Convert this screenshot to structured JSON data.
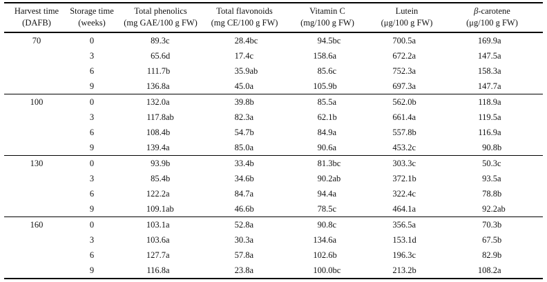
{
  "table": {
    "columns": [
      {
        "label": "Harvest time",
        "unit": "(DAFB)"
      },
      {
        "label": "Storage time",
        "unit": "(weeks)"
      },
      {
        "label": "Total phenolics",
        "unit": "(mg GAE/100 g FW)"
      },
      {
        "label": "Total flavonoids",
        "unit": "(mg CE/100 g FW)"
      },
      {
        "label": "Vitamin C",
        "unit": "(mg/100 g FW)"
      },
      {
        "label": "Lutein",
        "unit": "(μg/100 g FW)"
      },
      {
        "label": "β-carotene",
        "unit": "(μg/100 g FW)"
      }
    ],
    "groups": [
      {
        "harvest_time": "70",
        "rows": [
          {
            "storage": "0",
            "phenolics": "89.3c",
            "flavonoids": "28.4bc",
            "vitamin_c": "94.5bc",
            "lutein": "700.5a",
            "beta_carotene": "169.9a"
          },
          {
            "storage": "3",
            "phenolics": "65.6d",
            "flavonoids": "17.4c",
            "vitamin_c": "158.6a",
            "lutein": "672.2a",
            "beta_carotene": "147.5a"
          },
          {
            "storage": "6",
            "phenolics": "111.7b",
            "flavonoids": "35.9ab",
            "vitamin_c": "85.6c",
            "lutein": "752.3a",
            "beta_carotene": "158.3a"
          },
          {
            "storage": "9",
            "phenolics": "136.8a",
            "flavonoids": "45.0a",
            "vitamin_c": "105.9b",
            "lutein": "697.3a",
            "beta_carotene": "147.7a"
          }
        ]
      },
      {
        "harvest_time": "100",
        "rows": [
          {
            "storage": "0",
            "phenolics": "132.0a",
            "flavonoids": "39.8b",
            "vitamin_c": "85.5a",
            "lutein": "562.0b",
            "beta_carotene": "118.9a"
          },
          {
            "storage": "3",
            "phenolics": "117.8ab",
            "flavonoids": "82.3a",
            "vitamin_c": "62.1b",
            "lutein": "661.4a",
            "beta_carotene": "119.5a"
          },
          {
            "storage": "6",
            "phenolics": "108.4b",
            "flavonoids": "54.7b",
            "vitamin_c": "84.9a",
            "lutein": "557.8b",
            "beta_carotene": "116.9a"
          },
          {
            "storage": "9",
            "phenolics": "139.4a",
            "flavonoids": "85.0a",
            "vitamin_c": "90.6a",
            "lutein": "453.2c",
            "beta_carotene": "90.8b"
          }
        ]
      },
      {
        "harvest_time": "130",
        "rows": [
          {
            "storage": "0",
            "phenolics": "93.9b",
            "flavonoids": "33.4b",
            "vitamin_c": "81.3bc",
            "lutein": "303.3c",
            "beta_carotene": "50.3c"
          },
          {
            "storage": "3",
            "phenolics": "85.4b",
            "flavonoids": "34.6b",
            "vitamin_c": "90.2ab",
            "lutein": "372.1b",
            "beta_carotene": "93.5a"
          },
          {
            "storage": "6",
            "phenolics": "122.2a",
            "flavonoids": "84.7a",
            "vitamin_c": "94.4a",
            "lutein": "322.4c",
            "beta_carotene": "78.8b"
          },
          {
            "storage": "9",
            "phenolics": "109.1ab",
            "flavonoids": "46.6b",
            "vitamin_c": "78.5c",
            "lutein": "464.1a",
            "beta_carotene": "92.2ab"
          }
        ]
      },
      {
        "harvest_time": "160",
        "rows": [
          {
            "storage": "0",
            "phenolics": "103.1a",
            "flavonoids": "52.8a",
            "vitamin_c": "90.8c",
            "lutein": "356.5a",
            "beta_carotene": "70.3b"
          },
          {
            "storage": "3",
            "phenolics": "103.6a",
            "flavonoids": "30.3a",
            "vitamin_c": "134.6a",
            "lutein": "153.1d",
            "beta_carotene": "67.5b"
          },
          {
            "storage": "6",
            "phenolics": "127.7a",
            "flavonoids": "57.8a",
            "vitamin_c": "102.6b",
            "lutein": "196.3c",
            "beta_carotene": "82.9b"
          },
          {
            "storage": "9",
            "phenolics": "116.8a",
            "flavonoids": "23.8a",
            "vitamin_c": "100.0bc",
            "lutein": "213.2b",
            "beta_carotene": "108.2a"
          }
        ]
      }
    ]
  }
}
